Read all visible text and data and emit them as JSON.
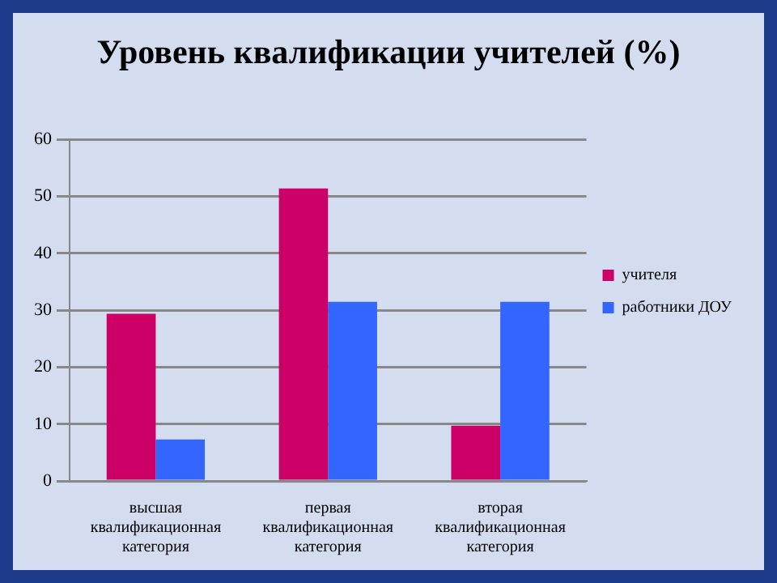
{
  "chart_data": {
    "type": "bar",
    "title": "Уровень квалификации учителей (%)",
    "categories": [
      "высшая квалификационная категория",
      "первая квалификационная категория",
      "вторая квалификационная категория"
    ],
    "series": [
      {
        "name": "учителя",
        "color": "#cc0066",
        "values": [
          29.4,
          51.4,
          9.7
        ]
      },
      {
        "name": "работники ДОУ",
        "color": "#3366ff",
        "values": [
          7.3,
          31.5,
          31.5
        ]
      }
    ],
    "ylim": [
      0,
      60
    ],
    "yticks": [
      0,
      10,
      20,
      30,
      40,
      50,
      60
    ],
    "grid": "y",
    "legend": "right"
  }
}
